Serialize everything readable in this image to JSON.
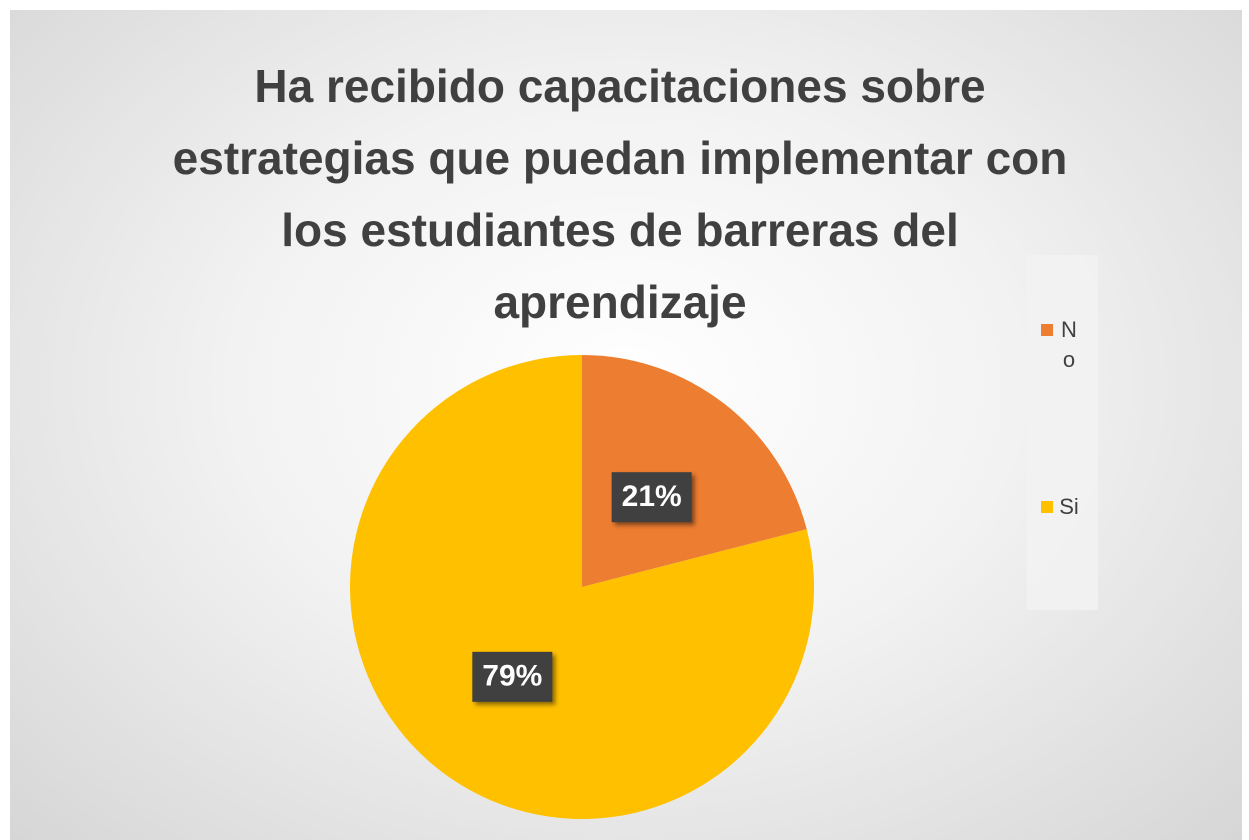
{
  "chart_data": {
    "type": "pie",
    "title": "Ha recibido capacitaciones sobre estrategias que puedan implementar con los estudiantes de barreras del aprendizaje",
    "categories": [
      "No",
      "Si"
    ],
    "values": [
      21,
      79
    ],
    "value_labels": [
      "21%",
      "79%"
    ],
    "colors": [
      "#ED7D31",
      "#FFC000"
    ],
    "legend": "right"
  }
}
